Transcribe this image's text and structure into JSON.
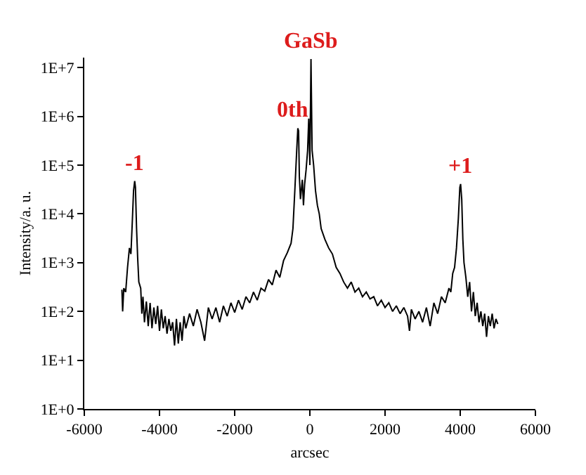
{
  "chart_data": {
    "type": "line",
    "xlabel": "arcsec",
    "ylabel": "Intensity/a. u.",
    "log": "y",
    "marker": "none",
    "line_style": "solid",
    "xlim": [
      -6000,
      6000
    ],
    "xticks": [
      -6000,
      -4000,
      -2000,
      0,
      2000,
      4000,
      6000
    ],
    "ylim": [
      1,
      16000000
    ],
    "yticks": [
      {
        "value": 1,
        "label": "1E+0"
      },
      {
        "value": 10,
        "label": "1E+1"
      },
      {
        "value": 100,
        "label": "1E+2"
      },
      {
        "value": 1000,
        "label": "1E+3"
      },
      {
        "value": 10000,
        "label": "1E+4"
      },
      {
        "value": 100000,
        "label": "1E+5"
      },
      {
        "value": 1000000,
        "label": "1E+6"
      },
      {
        "value": 10000000,
        "label": "1E+7"
      }
    ],
    "annotations": [
      {
        "text": "-1",
        "x": -4660,
        "y": 47000
      },
      {
        "text": "0th",
        "x": -320,
        "y": 570000
      },
      {
        "text": "GaSb",
        "x": 30,
        "y": 15000000
      },
      {
        "text": "+1",
        "x": 4010,
        "y": 41000
      }
    ],
    "series": [
      {
        "color": "#000000",
        "x": [
          -5000,
          -4980,
          -4950,
          -4900,
          -4850,
          -4800,
          -4760,
          -4720,
          -4690,
          -4660,
          -4640,
          -4610,
          -4580,
          -4550,
          -4500,
          -4470,
          -4440,
          -4400,
          -4350,
          -4300,
          -4250,
          -4200,
          -4150,
          -4100,
          -4050,
          -4000,
          -3950,
          -3900,
          -3850,
          -3800,
          -3750,
          -3700,
          -3650,
          -3600,
          -3550,
          -3500,
          -3450,
          -3400,
          -3350,
          -3300,
          -3200,
          -3100,
          -3000,
          -2900,
          -2800,
          -2700,
          -2600,
          -2500,
          -2400,
          -2300,
          -2200,
          -2100,
          -2000,
          -1900,
          -1800,
          -1700,
          -1600,
          -1500,
          -1400,
          -1300,
          -1200,
          -1100,
          -1000,
          -900,
          -800,
          -700,
          -600,
          -500,
          -450,
          -400,
          -350,
          -320,
          -300,
          -280,
          -250,
          -200,
          -170,
          -140,
          -100,
          -60,
          -30,
          0,
          30,
          60,
          100,
          150,
          200,
          250,
          300,
          400,
          500,
          600,
          700,
          800,
          900,
          1000,
          1100,
          1200,
          1300,
          1400,
          1500,
          1600,
          1700,
          1800,
          1900,
          2000,
          2100,
          2200,
          2300,
          2400,
          2500,
          2600,
          2650,
          2700,
          2800,
          2900,
          3000,
          3100,
          3200,
          3300,
          3400,
          3500,
          3600,
          3700,
          3750,
          3800,
          3850,
          3900,
          3950,
          3990,
          4010,
          4040,
          4070,
          4100,
          4150,
          4200,
          4250,
          4300,
          4350,
          4400,
          4450,
          4500,
          4550,
          4600,
          4650,
          4700,
          4750,
          4800,
          4850,
          4900,
          4950,
          5000
        ],
        "values": [
          280,
          100,
          300,
          250,
          800,
          2000,
          1500,
          8000,
          30000,
          47000,
          35000,
          5000,
          1200,
          400,
          300,
          90,
          200,
          60,
          160,
          50,
          150,
          45,
          120,
          55,
          130,
          40,
          110,
          45,
          80,
          35,
          70,
          40,
          60,
          20,
          70,
          22,
          60,
          25,
          80,
          45,
          90,
          50,
          110,
          60,
          25,
          120,
          70,
          120,
          60,
          130,
          80,
          150,
          95,
          170,
          110,
          200,
          150,
          250,
          170,
          300,
          260,
          450,
          350,
          700,
          500,
          1100,
          1600,
          2500,
          5000,
          30000,
          200000,
          570000,
          500000,
          60000,
          20000,
          50000,
          15000,
          40000,
          80000,
          200000,
          900000,
          100000,
          15000000,
          200000,
          100000,
          30000,
          15000,
          10000,
          5000,
          3000,
          2000,
          1500,
          800,
          600,
          400,
          300,
          400,
          250,
          300,
          200,
          250,
          180,
          200,
          130,
          170,
          120,
          150,
          100,
          130,
          90,
          120,
          80,
          40,
          110,
          70,
          100,
          60,
          120,
          50,
          150,
          90,
          200,
          150,
          300,
          250,
          600,
          800,
          2000,
          8000,
          35000,
          41000,
          20000,
          3000,
          1000,
          500,
          200,
          400,
          100,
          250,
          80,
          150,
          60,
          100,
          50,
          90,
          30,
          80,
          50,
          90,
          45,
          70,
          55
        ]
      }
    ]
  }
}
